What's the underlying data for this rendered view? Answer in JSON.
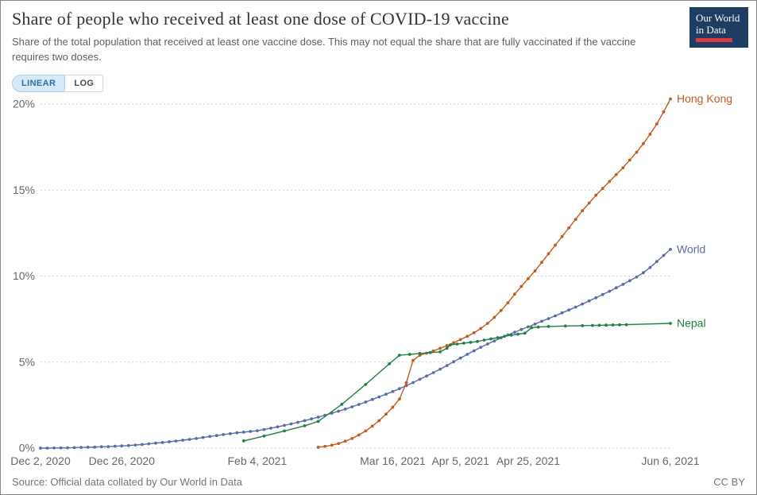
{
  "header": {
    "title": "Share of people who received at least one dose of COVID-19 vaccine",
    "subtitle": "Share of the total population that received at least one vaccine dose. This may not equal the share that are fully vaccinated if the vaccine requires two doses.",
    "logo": {
      "line1": "Our World",
      "line2": "in Data"
    }
  },
  "controls": {
    "linear_label": "LINEAR",
    "log_label": "LOG",
    "active": "LINEAR"
  },
  "footer": {
    "source": "Source: Official data collated by Our World in Data",
    "license": "CC BY"
  },
  "chart_data": {
    "type": "line",
    "title": "Share of people who received at least one dose of COVID-19 vaccine",
    "x_unit": "days since Dec 2, 2020",
    "x_domain": [
      0,
      186
    ],
    "ylim": [
      0,
      20
    ],
    "grid": "dashed-horizontal",
    "legend_position": "end-of-line",
    "y_ticks": [
      {
        "value": 0,
        "label": "0%"
      },
      {
        "value": 5,
        "label": "5%"
      },
      {
        "value": 10,
        "label": "10%"
      },
      {
        "value": 15,
        "label": "15%"
      },
      {
        "value": 20,
        "label": "20%"
      }
    ],
    "x_ticks": [
      {
        "day": 0,
        "label": "Dec 2, 2020"
      },
      {
        "day": 24,
        "label": "Dec 26, 2020"
      },
      {
        "day": 64,
        "label": "Feb 4, 2021"
      },
      {
        "day": 104,
        "label": "Mar 16, 2021"
      },
      {
        "day": 124,
        "label": "Apr 5, 2021"
      },
      {
        "day": 144,
        "label": "Apr 25, 2021"
      },
      {
        "day": 186,
        "label": "Jun 6, 2021"
      }
    ],
    "series": [
      {
        "name": "World",
        "color": "#586ca6",
        "points": [
          [
            0,
            0.0
          ],
          [
            2,
            0.0
          ],
          [
            4,
            0.01
          ],
          [
            6,
            0.01
          ],
          [
            8,
            0.02
          ],
          [
            10,
            0.03
          ],
          [
            12,
            0.04
          ],
          [
            14,
            0.05
          ],
          [
            16,
            0.06
          ],
          [
            18,
            0.08
          ],
          [
            20,
            0.09
          ],
          [
            22,
            0.11
          ],
          [
            24,
            0.13
          ],
          [
            26,
            0.15
          ],
          [
            28,
            0.18
          ],
          [
            30,
            0.21
          ],
          [
            32,
            0.25
          ],
          [
            34,
            0.29
          ],
          [
            36,
            0.33
          ],
          [
            38,
            0.37
          ],
          [
            40,
            0.41
          ],
          [
            42,
            0.46
          ],
          [
            44,
            0.51
          ],
          [
            46,
            0.56
          ],
          [
            48,
            0.62
          ],
          [
            50,
            0.68
          ],
          [
            52,
            0.73
          ],
          [
            54,
            0.79
          ],
          [
            56,
            0.84
          ],
          [
            58,
            0.89
          ],
          [
            60,
            0.93
          ],
          [
            62,
            0.97
          ],
          [
            64,
            1.01
          ],
          [
            66,
            1.08
          ],
          [
            68,
            1.16
          ],
          [
            70,
            1.24
          ],
          [
            72,
            1.32
          ],
          [
            74,
            1.41
          ],
          [
            76,
            1.5
          ],
          [
            78,
            1.6
          ],
          [
            80,
            1.7
          ],
          [
            82,
            1.8
          ],
          [
            84,
            1.91
          ],
          [
            86,
            2.03
          ],
          [
            88,
            2.15
          ],
          [
            90,
            2.27
          ],
          [
            92,
            2.4
          ],
          [
            94,
            2.54
          ],
          [
            96,
            2.68
          ],
          [
            98,
            2.83
          ],
          [
            100,
            2.98
          ],
          [
            102,
            3.13
          ],
          [
            104,
            3.29
          ],
          [
            106,
            3.46
          ],
          [
            108,
            3.63
          ],
          [
            110,
            3.81
          ],
          [
            112,
            4.0
          ],
          [
            114,
            4.19
          ],
          [
            116,
            4.39
          ],
          [
            118,
            4.59
          ],
          [
            120,
            4.8
          ],
          [
            122,
            5.02
          ],
          [
            124,
            5.24
          ],
          [
            126,
            5.45
          ],
          [
            128,
            5.66
          ],
          [
            130,
            5.86
          ],
          [
            132,
            6.05
          ],
          [
            134,
            6.23
          ],
          [
            136,
            6.41
          ],
          [
            138,
            6.58
          ],
          [
            140,
            6.74
          ],
          [
            142,
            6.9
          ],
          [
            144,
            7.05
          ],
          [
            146,
            7.21
          ],
          [
            148,
            7.37
          ],
          [
            150,
            7.53
          ],
          [
            152,
            7.69
          ],
          [
            154,
            7.86
          ],
          [
            156,
            8.03
          ],
          [
            158,
            8.2
          ],
          [
            160,
            8.38
          ],
          [
            162,
            8.56
          ],
          [
            164,
            8.74
          ],
          [
            166,
            8.93
          ],
          [
            168,
            9.12
          ],
          [
            170,
            9.32
          ],
          [
            172,
            9.52
          ],
          [
            174,
            9.73
          ],
          [
            176,
            9.95
          ],
          [
            178,
            10.2
          ],
          [
            180,
            10.5
          ],
          [
            182,
            10.85
          ],
          [
            184,
            11.2
          ],
          [
            186,
            11.55
          ]
        ]
      },
      {
        "name": "Hong Kong",
        "color": "#bf5b1e",
        "points": [
          [
            82,
            0.05
          ],
          [
            84,
            0.1
          ],
          [
            86,
            0.17
          ],
          [
            88,
            0.27
          ],
          [
            90,
            0.4
          ],
          [
            92,
            0.56
          ],
          [
            94,
            0.76
          ],
          [
            96,
            1.0
          ],
          [
            98,
            1.28
          ],
          [
            100,
            1.6
          ],
          [
            102,
            1.97
          ],
          [
            104,
            2.38
          ],
          [
            106,
            2.85
          ],
          [
            108,
            3.8
          ],
          [
            110,
            5.1
          ],
          [
            112,
            5.4
          ],
          [
            114,
            5.52
          ],
          [
            116,
            5.65
          ],
          [
            118,
            5.8
          ],
          [
            120,
            5.96
          ],
          [
            122,
            6.13
          ],
          [
            124,
            6.31
          ],
          [
            126,
            6.5
          ],
          [
            128,
            6.7
          ],
          [
            130,
            6.95
          ],
          [
            132,
            7.25
          ],
          [
            134,
            7.6
          ],
          [
            136,
            8.0
          ],
          [
            138,
            8.45
          ],
          [
            140,
            8.95
          ],
          [
            142,
            9.4
          ],
          [
            144,
            9.85
          ],
          [
            146,
            10.3
          ],
          [
            148,
            10.8
          ],
          [
            150,
            11.3
          ],
          [
            152,
            11.8
          ],
          [
            154,
            12.3
          ],
          [
            156,
            12.8
          ],
          [
            158,
            13.3
          ],
          [
            160,
            13.8
          ],
          [
            162,
            14.25
          ],
          [
            164,
            14.7
          ],
          [
            166,
            15.1
          ],
          [
            168,
            15.5
          ],
          [
            170,
            15.9
          ],
          [
            172,
            16.3
          ],
          [
            174,
            16.75
          ],
          [
            176,
            17.2
          ],
          [
            178,
            17.7
          ],
          [
            180,
            18.25
          ],
          [
            182,
            18.85
          ],
          [
            184,
            19.55
          ],
          [
            186,
            20.3
          ]
        ]
      },
      {
        "name": "Nepal",
        "color": "#1d8044",
        "points": [
          [
            60,
            0.42
          ],
          [
            66,
            0.7
          ],
          [
            72,
            1.0
          ],
          [
            78,
            1.3
          ],
          [
            82,
            1.55
          ],
          [
            89,
            2.55
          ],
          [
            96,
            3.7
          ],
          [
            103,
            4.9
          ],
          [
            106,
            5.4
          ],
          [
            109,
            5.45
          ],
          [
            112,
            5.5
          ],
          [
            115,
            5.55
          ],
          [
            118,
            5.6
          ],
          [
            120,
            5.8
          ],
          [
            121,
            6.0
          ],
          [
            123,
            6.05
          ],
          [
            125,
            6.1
          ],
          [
            127,
            6.15
          ],
          [
            129,
            6.2
          ],
          [
            131,
            6.28
          ],
          [
            133,
            6.35
          ],
          [
            135,
            6.42
          ],
          [
            137,
            6.5
          ],
          [
            139,
            6.57
          ],
          [
            141,
            6.63
          ],
          [
            143,
            6.68
          ],
          [
            145,
            7.0
          ],
          [
            147,
            7.04
          ],
          [
            150,
            7.07
          ],
          [
            155,
            7.1
          ],
          [
            160,
            7.12
          ],
          [
            163,
            7.13
          ],
          [
            165,
            7.14
          ],
          [
            167,
            7.15
          ],
          [
            169,
            7.16
          ],
          [
            171,
            7.17
          ],
          [
            173,
            7.18
          ],
          [
            186,
            7.25
          ]
        ]
      }
    ]
  }
}
